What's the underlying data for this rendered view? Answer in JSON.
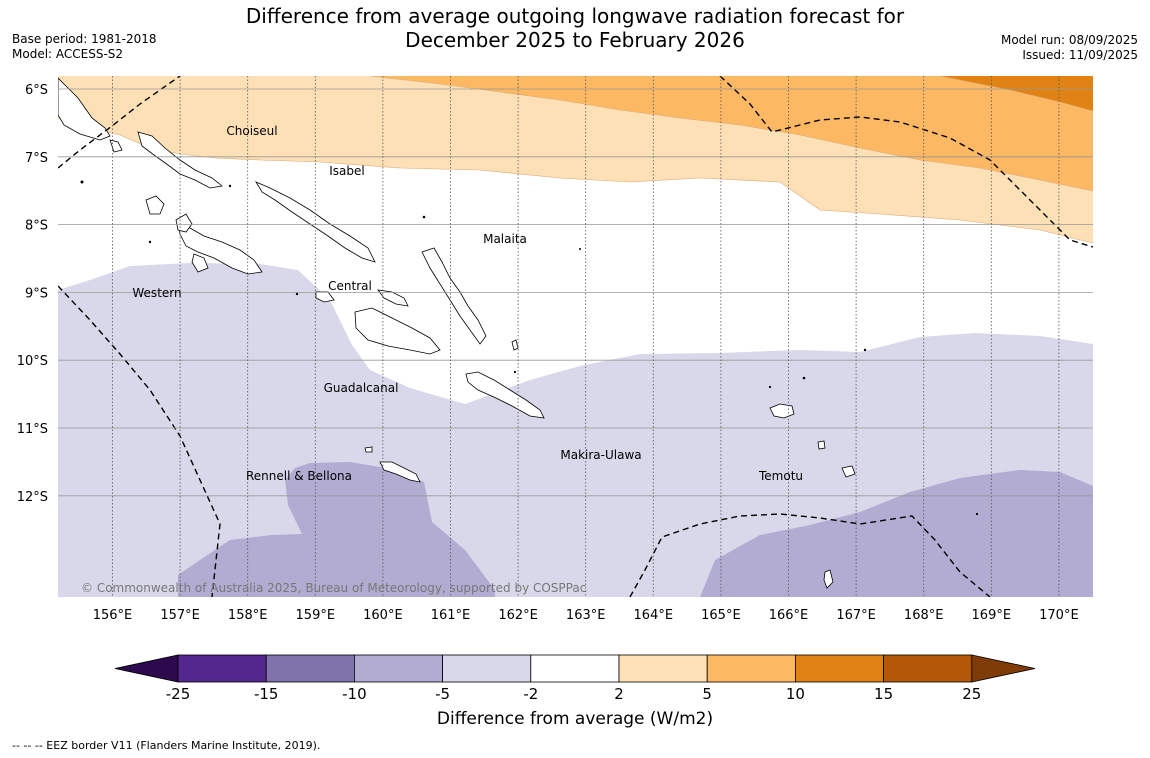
{
  "header": {
    "title_line1": "Difference from average outgoing longwave radiation forecast for",
    "title_line2": "December 2025 to February 2026",
    "base_period": "Base period: 1981-2018",
    "model": "Model: ACCESS-S2",
    "model_run": "Model run: 08/09/2025",
    "issued": "Issued: 11/09/2025"
  },
  "map": {
    "lat_labels": [
      "6°S",
      "7°S",
      "8°S",
      "9°S",
      "10°S",
      "11°S",
      "12°S"
    ],
    "lon_labels": [
      "156°E",
      "157°E",
      "158°E",
      "159°E",
      "160°E",
      "161°E",
      "162°E",
      "163°E",
      "164°E",
      "165°E",
      "166°E",
      "167°E",
      "168°E",
      "169°E",
      "170°E"
    ],
    "region_labels": [
      "Choiseul",
      "Isabel",
      "Malaita",
      "Western",
      "Central",
      "Guadalcanal",
      "Makira-Ulawa",
      "Rennell & Bellona",
      "Temotu"
    ],
    "copyright": "© Commonwealth of Australia 2025, Bureau of Meteorology, supported by COSPPac"
  },
  "colorbar": {
    "ticks": [
      "-25",
      "-15",
      "-10",
      "-5",
      "-2",
      "2",
      "5",
      "10",
      "15",
      "25"
    ],
    "colors": [
      "#2d0a4d",
      "#54278f",
      "#8073ac",
      "#b2abd2",
      "#d8d8ea",
      "#ffffff",
      "#fee0b6",
      "#fdb863",
      "#e08214",
      "#b35806",
      "#7f3b08"
    ],
    "label": "Difference from average (W/m2)"
  },
  "footnote": "--  --  -- EEZ border V11 (Flanders Marine Institute, 2019)."
}
